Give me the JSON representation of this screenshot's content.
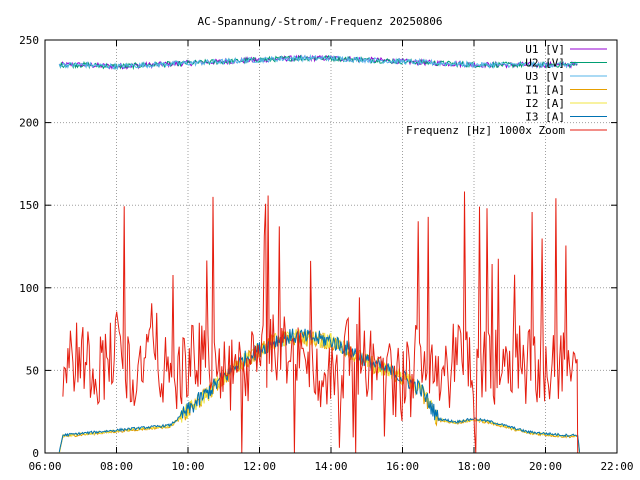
{
  "chart_data": {
    "type": "line",
    "title": "AC-Spannung/-Strom/-Frequenz 20250806",
    "xlabel": "",
    "ylabel": "",
    "xlim_hours": [
      6,
      22
    ],
    "ylim": [
      0,
      250
    ],
    "x_ticks": [
      "06:00",
      "08:00",
      "10:00",
      "12:00",
      "14:00",
      "16:00",
      "18:00",
      "20:00",
      "22:00"
    ],
    "y_ticks": [
      "0",
      "50",
      "100",
      "150",
      "200",
      "250"
    ],
    "grid": true,
    "legend_position": "top-right",
    "series": [
      {
        "name": "U1 [V]",
        "color": "#9400d3"
      },
      {
        "name": "U2 [V]",
        "color": "#009e73"
      },
      {
        "name": "U3 [V]",
        "color": "#56b4e9"
      },
      {
        "name": "I1 [A]",
        "color": "#e69f00"
      },
      {
        "name": "I2 [A]",
        "color": "#f0e442"
      },
      {
        "name": "I3 [A]",
        "color": "#0072b2"
      },
      {
        "name": "Frequenz [Hz] 1000x Zoom",
        "color": "#e51e10"
      }
    ],
    "voltage_profile": {
      "hours": [
        6.4,
        7,
        8,
        9,
        10,
        11,
        12,
        13,
        14,
        15,
        16,
        17,
        18,
        19,
        20,
        20.9
      ],
      "values": [
        235,
        235,
        234,
        235,
        236,
        237,
        238,
        239,
        239,
        238,
        237,
        236,
        235,
        235,
        235,
        235
      ]
    },
    "current_profile": {
      "hours": [
        6.4,
        6.5,
        7,
        8,
        9,
        9.5,
        10,
        10.5,
        11,
        11.5,
        12,
        12.5,
        13,
        13.5,
        14,
        14.5,
        15,
        15.5,
        16,
        16.5,
        17,
        17.5,
        18,
        18.5,
        19,
        19.5,
        20,
        20.5,
        20.9,
        20.95
      ],
      "values": [
        0,
        10,
        11,
        13,
        15,
        16,
        25,
        35,
        45,
        55,
        62,
        68,
        70,
        69,
        67,
        62,
        55,
        50,
        45,
        38,
        20,
        18,
        20,
        18,
        15,
        12,
        11,
        10,
        10,
        0
      ]
    },
    "frequency_zoom_profile": {
      "hours": [
        6.5,
        7,
        7.5,
        8,
        8.5,
        9,
        9.5,
        10,
        10.5,
        11,
        11.5,
        12,
        12.5,
        13,
        13.5,
        14,
        14.5,
        15,
        15.5,
        16,
        16.5,
        17,
        17.5,
        18,
        18.5,
        19,
        19.5,
        20,
        20.5,
        20.9
      ],
      "values": [
        55,
        60,
        50,
        65,
        45,
        70,
        40,
        55,
        60,
        45,
        50,
        55,
        65,
        60,
        50,
        45,
        60,
        55,
        50,
        40,
        65,
        50,
        60,
        55,
        50,
        60,
        55,
        50,
        55,
        60
      ]
    }
  }
}
